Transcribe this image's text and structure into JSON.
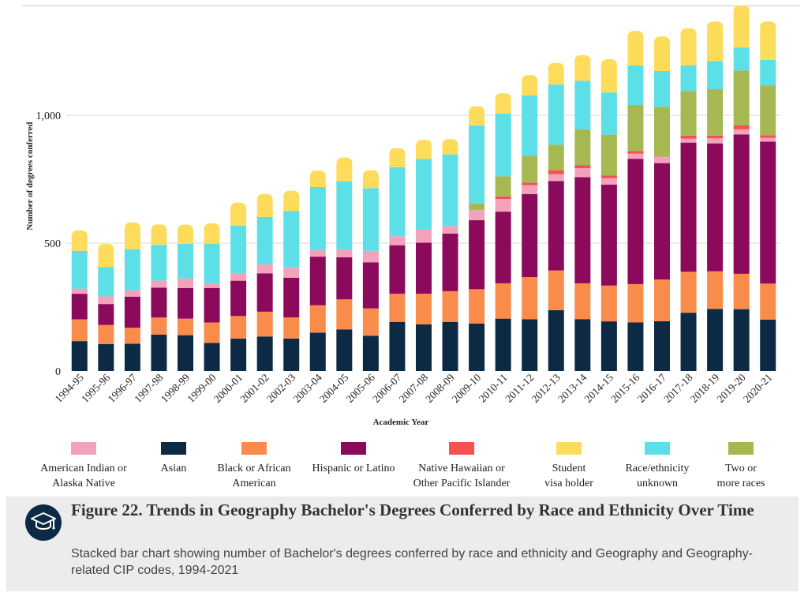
{
  "chart_data": {
    "type": "bar",
    "stacked": true,
    "title": "Figure 22. Trends in Geography Bachelor's Degrees Conferred by Race and Ethnicity Over Time",
    "xlabel": "Academic Year",
    "ylabel": "Number of degrees conferred",
    "ylim": [
      0,
      1400
    ],
    "yticks": [
      0,
      500,
      1000
    ],
    "ytick_labels": [
      "0",
      "500",
      "1,000"
    ],
    "grid": true,
    "legend_position": "bottom",
    "categories": [
      "1994-95",
      "1995-96",
      "1996-97",
      "1997-98",
      "1998-99",
      "1999-00",
      "2000-01",
      "2001-02",
      "2002-03",
      "2003-04",
      "2004-05",
      "2005-06",
      "2006-07",
      "2007-08",
      "2008-09",
      "2009-10",
      "2010-11",
      "2011-12",
      "2012-13",
      "2013-14",
      "2014-15",
      "2015-16",
      "2016-17",
      "2017-18",
      "2018-19",
      "2019-20",
      "2020-21"
    ],
    "series": [
      {
        "name": "Asian",
        "legend_label": "Asian",
        "color": "#0d2a45",
        "values": [
          117,
          105,
          107,
          142,
          140,
          110,
          127,
          135,
          127,
          150,
          163,
          138,
          192,
          182,
          192,
          185,
          205,
          202,
          238,
          203,
          194,
          190,
          195,
          228,
          243,
          242,
          201
        ]
      },
      {
        "name": "Black or African American",
        "legend_label": "Black or African\nAmerican",
        "color": "#fa8c4b",
        "values": [
          85,
          75,
          62,
          67,
          65,
          80,
          88,
          97,
          83,
          107,
          117,
          107,
          110,
          120,
          120,
          135,
          138,
          165,
          155,
          140,
          140,
          150,
          163,
          160,
          147,
          138,
          141
        ]
      },
      {
        "name": "Hispanic or Latino",
        "legend_label": "Hispanic or Latino",
        "color": "#8b0a5c",
        "values": [
          100,
          82,
          122,
          117,
          120,
          135,
          138,
          150,
          155,
          190,
          165,
          180,
          190,
          200,
          225,
          270,
          280,
          325,
          350,
          415,
          395,
          490,
          455,
          505,
          500,
          545,
          555
        ]
      },
      {
        "name": "American Indian or Alaska Native",
        "legend_label": "American Indian or\nAlaska Native",
        "color": "#f2a3bb",
        "values": [
          20,
          30,
          25,
          27,
          37,
          18,
          30,
          35,
          40,
          27,
          30,
          45,
          35,
          52,
          30,
          40,
          50,
          35,
          27,
          35,
          25,
          20,
          25,
          15,
          20,
          20,
          15
        ]
      },
      {
        "name": "Native Hawaiian or Other Pacific Islander",
        "legend_label": "Native Hawaiian or\nOther Pacific Islander",
        "color": "#f45252",
        "values": [
          0,
          0,
          0,
          0,
          0,
          0,
          0,
          0,
          0,
          0,
          0,
          0,
          0,
          0,
          0,
          0,
          10,
          10,
          15,
          12,
          10,
          10,
          0,
          12,
          10,
          15,
          10
        ]
      },
      {
        "name": "Two or more races",
        "legend_label": "Two or\nmore races",
        "color": "#a6b851",
        "values": [
          0,
          0,
          0,
          0,
          0,
          0,
          0,
          0,
          0,
          0,
          0,
          0,
          0,
          0,
          0,
          25,
          78,
          105,
          100,
          140,
          160,
          180,
          195,
          175,
          182,
          215,
          195
        ]
      },
      {
        "name": "Race/ethnicity unknown",
        "legend_label": "Race/ethnicity\nunknown",
        "color": "#5ddfe8",
        "values": [
          148,
          115,
          160,
          140,
          135,
          155,
          185,
          185,
          220,
          245,
          267,
          245,
          270,
          275,
          280,
          305,
          245,
          235,
          235,
          190,
          165,
          155,
          140,
          100,
          110,
          90,
          100
        ]
      },
      {
        "name": "Student visa holder",
        "legend_label": "Student\nvisa holder",
        "color": "#fddc5c",
        "values": [
          80,
          90,
          105,
          80,
          75,
          80,
          90,
          90,
          80,
          65,
          93,
          70,
          75,
          75,
          60,
          75,
          80,
          80,
          85,
          100,
          130,
          135,
          135,
          145,
          155,
          165,
          150
        ]
      }
    ],
    "legend_order": [
      "American Indian or Alaska Native",
      "Asian",
      "Black or African American",
      "Hispanic or Latino",
      "Native Hawaiian or Other Pacific Islander",
      "Student visa holder",
      "Race/ethnicity unknown",
      "Two or more races"
    ]
  },
  "caption": {
    "title": "Figure 22. Trends in Geography Bachelor's Degrees Conferred by Race and Ethnicity Over Time",
    "description": "Stacked bar chart showing number of Bachelor's degrees conferred by race and ethnicity and Geography and Geography-related CIP codes, 1994-2021",
    "icon": "graduation-cap-icon"
  }
}
